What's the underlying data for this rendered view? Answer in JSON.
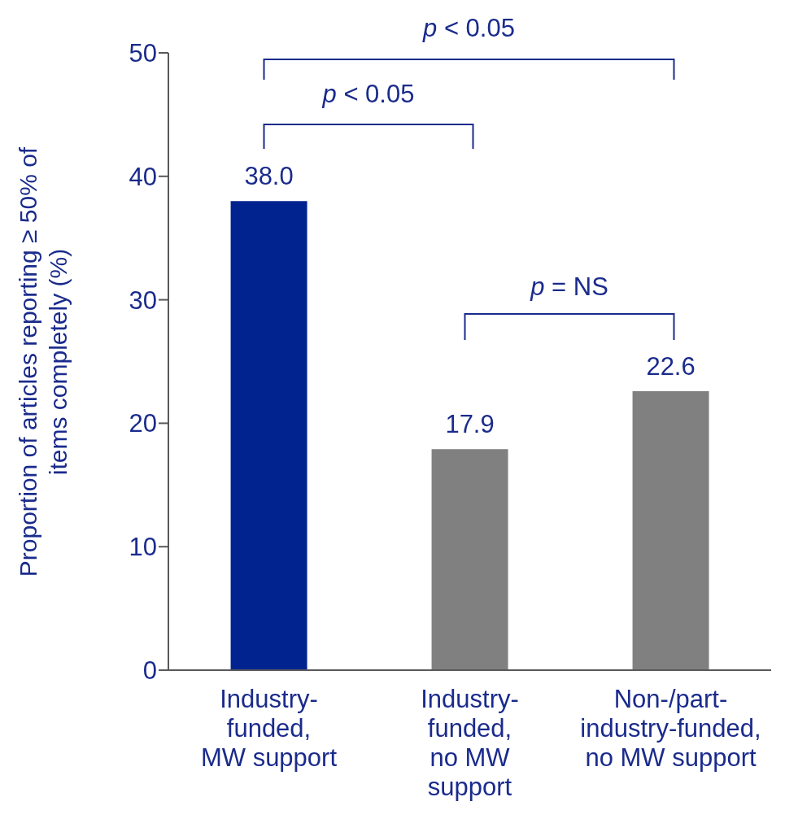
{
  "chart_data": {
    "type": "bar",
    "ylabel": "Proportion of articles reporting ≥ 50% of items completely (%)",
    "categories": [
      "Industry-\nfunded,\nMW support",
      "Industry-\nfunded,\nno MW\nsupport",
      "Non-/part-\nindustry-funded,\nno MW support"
    ],
    "values": [
      38.0,
      17.9,
      22.6
    ],
    "colors": [
      "#00238f",
      "#808080",
      "#808080"
    ],
    "value_labels": [
      "38.0",
      "17.9",
      "22.6"
    ],
    "ylim": [
      0,
      50
    ],
    "yticks": [
      0,
      10,
      20,
      30,
      40,
      50
    ],
    "annotations": [
      "p < 0.05",
      "p < 0.05",
      "p = NS"
    ]
  }
}
